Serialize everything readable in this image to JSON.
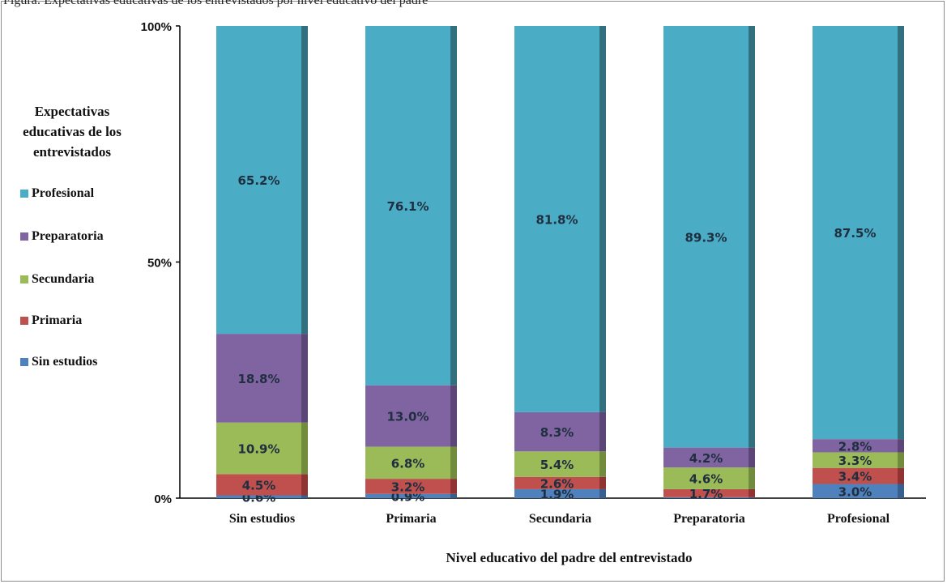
{
  "header": {
    "note": "Figura: Expectativas educativas de los entrevistados por nivel educativo del padre"
  },
  "legend": {
    "title_lines": [
      "Expectativas",
      "educativas de los",
      "entrevistados"
    ],
    "items": [
      {
        "label": "Profesional",
        "color": "#4bacc6"
      },
      {
        "label": "Preparatoria",
        "color": "#8064a2"
      },
      {
        "label": "Secundaria",
        "color": "#9bbb59"
      },
      {
        "label": " Primaria",
        "color": "#c0504d"
      },
      {
        "label": "Sin estudios",
        "color": "#4f81bd"
      }
    ]
  },
  "chart_data": {
    "type": "bar",
    "stacked": true,
    "percent": true,
    "categories": [
      "Sin estudios",
      "Primaria",
      "Secundaria",
      "Preparatoria",
      "Profesional"
    ],
    "series": [
      {
        "name": "Sin estudios",
        "color": "#4f81bd",
        "dark": "#375f8f",
        "values": [
          0.6,
          0.9,
          1.9,
          0.2,
          3.0
        ],
        "labels": [
          "0.6%",
          "0.9%",
          "1.9%",
          "",
          "3.0%"
        ]
      },
      {
        "name": "Primaria",
        "color": "#c0504d",
        "dark": "#8f3432",
        "values": [
          4.5,
          3.2,
          2.6,
          1.7,
          3.4
        ],
        "labels": [
          "4.5%",
          "3.2%",
          "2.6%",
          "1.7%",
          "3.4%"
        ]
      },
      {
        "name": "Secundaria",
        "color": "#9bbb59",
        "dark": "#718c3c",
        "values": [
          10.9,
          6.8,
          5.4,
          4.6,
          3.3
        ],
        "labels": [
          "10.9%",
          "6.8%",
          "5.4%",
          "4.6%",
          "3.3%"
        ]
      },
      {
        "name": "Preparatoria",
        "color": "#8064a2",
        "dark": "#5b4677",
        "values": [
          18.8,
          13.0,
          8.3,
          4.2,
          2.8
        ],
        "labels": [
          "18.8%",
          "13.0%",
          "8.3%",
          "4.2%",
          "2.8%"
        ]
      },
      {
        "name": "Profesional",
        "color": "#4bacc6",
        "dark": "#33707f",
        "values": [
          65.2,
          76.1,
          81.8,
          89.3,
          87.5
        ],
        "labels": [
          "65.2%",
          "76.1%",
          "81.8%",
          "89.3%",
          "87.5%"
        ]
      }
    ],
    "yticks": [
      "0%",
      "50%",
      "100%"
    ],
    "xlabel": "Nivel educativo del padre del entrevistado",
    "ylim": [
      0,
      100
    ],
    "grid": false,
    "legend_position": "left"
  }
}
